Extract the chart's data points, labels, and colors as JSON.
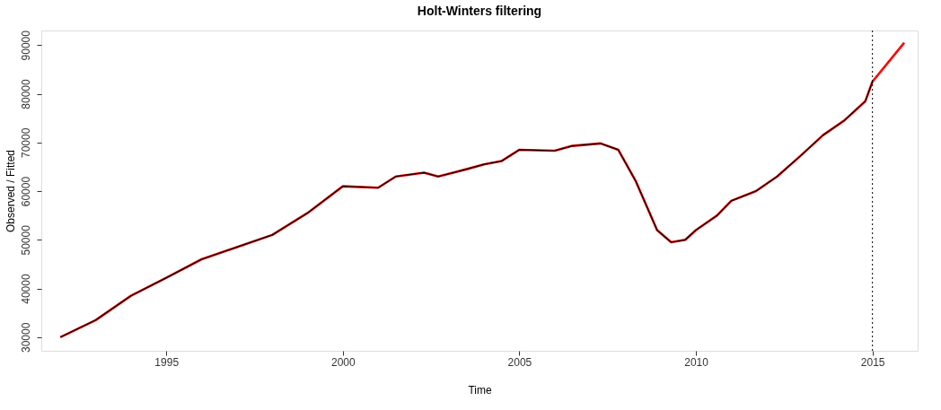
{
  "chart_data": {
    "type": "line",
    "title": "Holt-Winters filtering",
    "xlabel": "Time",
    "ylabel": "Observed / Fitted",
    "xlim": [
      1991.46,
      2016.28
    ],
    "ylim": [
      27200,
      93000
    ],
    "xticks": [
      1995,
      2000,
      2005,
      2010,
      2015
    ],
    "yticks": [
      30000,
      40000,
      50000,
      60000,
      70000,
      80000,
      90000
    ],
    "grid": false,
    "marker": "none",
    "line_style": "solid",
    "ref_lines": [
      {
        "axis": "x",
        "value": 2015,
        "label": null,
        "color": "#000000",
        "line_style": "dotted"
      }
    ],
    "series": [
      {
        "color": "#000000",
        "x": [
          1992,
          1993,
          1994,
          1995,
          1996,
          1997,
          1998,
          1999,
          2000,
          2001,
          2001.5,
          2002.3,
          2002.7,
          2003.5,
          2004,
          2004.5,
          2005,
          2006,
          2006.5,
          2007.3,
          2007.8,
          2008.3,
          2008.9,
          2009.3,
          2009.7,
          2010,
          2010.6,
          2011,
          2011.7,
          2012.3,
          2013,
          2013.6,
          2014.2,
          2014.8,
          2015
        ],
        "values": [
          30000,
          33500,
          38500,
          42200,
          46000,
          48500,
          51000,
          55500,
          61000,
          60700,
          63000,
          63800,
          63000,
          64500,
          65500,
          66200,
          68500,
          68300,
          69300,
          69800,
          68500,
          62000,
          52000,
          49500,
          50000,
          52000,
          55000,
          58000,
          60000,
          63000,
          67500,
          71500,
          74500,
          78500,
          82500
        ]
      },
      {
        "color": "#ff0000",
        "x": [
          1992,
          1993,
          1994,
          1995,
          1996,
          1997,
          1998,
          1999,
          2000,
          2001,
          2001.5,
          2002.3,
          2002.7,
          2003.5,
          2004,
          2004.5,
          2005,
          2006,
          2006.5,
          2007.3,
          2007.8,
          2008.3,
          2008.9,
          2009.3,
          2009.7,
          2010,
          2010.6,
          2011,
          2011.7,
          2012.3,
          2013,
          2013.6,
          2014.2,
          2014.8,
          2015,
          2015.9
        ],
        "values": [
          30000,
          33500,
          38500,
          42200,
          46000,
          48500,
          51000,
          55500,
          61000,
          60700,
          63000,
          63800,
          63000,
          64500,
          65500,
          66200,
          68500,
          68300,
          69300,
          69800,
          68500,
          62000,
          52000,
          49500,
          50000,
          52000,
          55000,
          58000,
          60000,
          63000,
          67500,
          71500,
          74500,
          78500,
          82500,
          90500
        ]
      }
    ]
  }
}
